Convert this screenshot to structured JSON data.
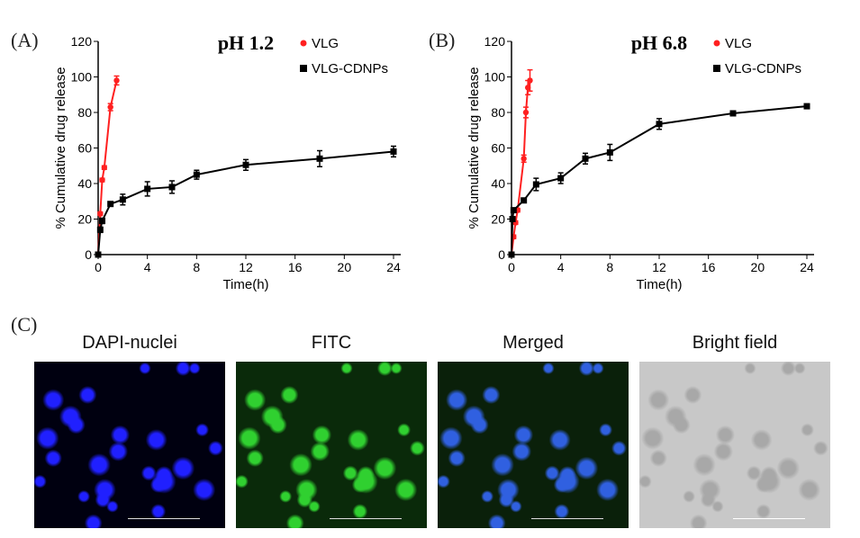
{
  "panels": {
    "a": "(A)",
    "b": "(B)",
    "c": "(C)"
  },
  "chart_data": [
    {
      "type": "line",
      "title": "pH 1.2",
      "xlabel": "Time(h)",
      "ylabel": "% Cumulative drug release",
      "xlim": [
        0,
        24
      ],
      "ylim": [
        0,
        120
      ],
      "xticks": [
        0,
        4,
        8,
        12,
        16,
        20,
        24
      ],
      "yticks": [
        0,
        20,
        40,
        60,
        80,
        100,
        120
      ],
      "legend": "top-right",
      "series": [
        {
          "name": "VLG",
          "color": "#ff2020",
          "marker": "circle",
          "x": [
            0,
            0.17,
            0.33,
            0.5,
            1,
            1.5
          ],
          "y": [
            0,
            23,
            42,
            49,
            83,
            98
          ],
          "err": [
            0,
            1,
            1,
            1,
            2,
            2.5
          ]
        },
        {
          "name": "VLG-CDNPs",
          "color": "#000000",
          "marker": "square",
          "x": [
            0,
            0.17,
            0.33,
            1,
            2,
            4,
            6,
            8,
            12,
            18,
            24
          ],
          "y": [
            0,
            14,
            19,
            28.5,
            31,
            37,
            38,
            45,
            50.5,
            54,
            58
          ],
          "err": [
            0,
            1.5,
            1.5,
            1,
            3,
            4,
            3.5,
            2.5,
            3,
            4.5,
            3
          ]
        }
      ]
    },
    {
      "type": "line",
      "title": "pH 6.8",
      "xlabel": "Time(h)",
      "ylabel": "% Cumulative drug release",
      "xlim": [
        0,
        24
      ],
      "ylim": [
        0,
        120
      ],
      "xticks": [
        0,
        4,
        8,
        12,
        16,
        20,
        24
      ],
      "yticks": [
        0,
        20,
        40,
        60,
        80,
        100,
        120
      ],
      "legend": "top-right",
      "series": [
        {
          "name": "VLG",
          "color": "#ff2020",
          "marker": "circle",
          "x": [
            0,
            0.17,
            0.33,
            0.5,
            1,
            1.17,
            1.33,
            1.5
          ],
          "y": [
            0,
            10,
            18,
            25,
            54,
            80,
            94,
            98
          ],
          "err": [
            0,
            1,
            1,
            1,
            2,
            3,
            4,
            6
          ]
        },
        {
          "name": "VLG-CDNPs",
          "color": "#000000",
          "marker": "square",
          "x": [
            0,
            0.08,
            0.17,
            1,
            2,
            4,
            6,
            8,
            12,
            18,
            24
          ],
          "y": [
            0,
            20,
            25,
            30.5,
            39.5,
            43,
            54,
            57.5,
            73.5,
            79.5,
            83.5
          ],
          "err": [
            0,
            1,
            1,
            1,
            3.5,
            3,
            3,
            4.5,
            3,
            1,
            1
          ]
        }
      ]
    }
  ],
  "images": [
    {
      "label": "DAPI-nuclei",
      "bg": "#000010",
      "cell": "#2020ff"
    },
    {
      "label": "FITC",
      "bg": "#0a2a0a",
      "cell": "#30d030"
    },
    {
      "label": "Merged",
      "bg": "#0a200a",
      "cell": "#3060e0"
    },
    {
      "label": "Bright field",
      "bg": "#c8c8c8",
      "cell": "#a8a8a8"
    }
  ]
}
